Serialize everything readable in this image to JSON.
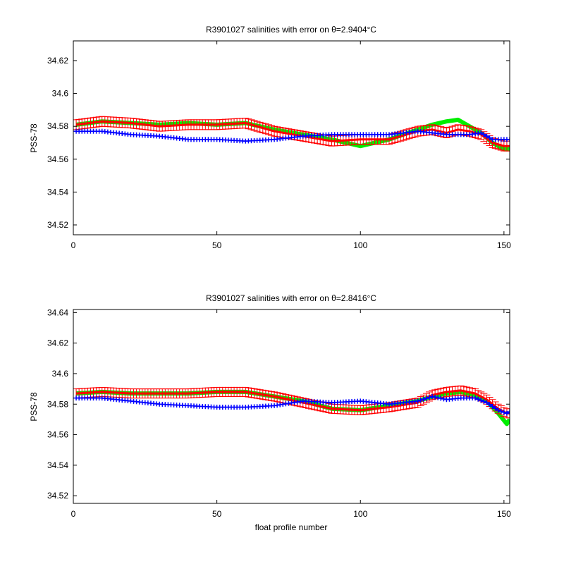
{
  "chart_data": [
    {
      "type": "line",
      "title": "R3901027 salinities with error on θ=2.9404°C",
      "xlabel": "",
      "ylabel": "PSS-78",
      "xlim": [
        0,
        152
      ],
      "ylim": [
        34.514,
        34.632
      ],
      "xticks": [
        0,
        50,
        100,
        150
      ],
      "yticks": [
        34.52,
        34.54,
        34.56,
        34.58,
        34.6,
        34.62
      ],
      "ytick_labels": [
        "34.52",
        "34.54",
        "34.56",
        "34.58",
        "34.6",
        "34.62"
      ],
      "grid": false,
      "series": [
        {
          "color": "#00ee00",
          "style": "thick-line",
          "x": [
            1,
            10,
            20,
            30,
            40,
            50,
            60,
            70,
            80,
            90,
            100,
            110,
            120,
            125,
            130,
            134,
            138,
            142,
            146,
            150,
            152
          ],
          "y": [
            34.581,
            34.583,
            34.582,
            34.581,
            34.582,
            34.581,
            34.582,
            34.578,
            34.575,
            34.572,
            34.568,
            34.572,
            34.578,
            34.581,
            34.583,
            34.584,
            34.58,
            34.576,
            34.57,
            34.566,
            34.566
          ]
        },
        {
          "color": "#ff0000",
          "style": "line-with-errorbars",
          "error": 0.003,
          "x": [
            1,
            10,
            20,
            30,
            40,
            50,
            60,
            70,
            80,
            90,
            100,
            110,
            120,
            125,
            130,
            134,
            138,
            142,
            146,
            150,
            152
          ],
          "y": [
            34.581,
            34.583,
            34.582,
            34.58,
            34.581,
            34.581,
            34.582,
            34.577,
            34.574,
            34.571,
            34.572,
            34.572,
            34.577,
            34.578,
            34.576,
            34.578,
            34.577,
            34.575,
            34.57,
            34.568,
            34.568
          ]
        },
        {
          "color": "#0000ff",
          "style": "plus-markers",
          "x": [
            1,
            10,
            20,
            30,
            40,
            50,
            60,
            70,
            80,
            90,
            100,
            110,
            120,
            125,
            130,
            134,
            138,
            142,
            146,
            150,
            152
          ],
          "y": [
            34.577,
            34.577,
            34.575,
            34.574,
            34.572,
            34.572,
            34.571,
            34.572,
            34.574,
            34.575,
            34.575,
            34.575,
            34.577,
            34.576,
            34.575,
            34.575,
            34.575,
            34.576,
            34.572,
            34.572,
            34.572
          ]
        }
      ]
    },
    {
      "type": "line",
      "title": "R3901027 salinities with error on θ=2.8416°C",
      "xlabel": "float profile number",
      "ylabel": "PSS-78",
      "xlim": [
        0,
        152
      ],
      "ylim": [
        34.515,
        34.642
      ],
      "xticks": [
        0,
        50,
        100,
        150
      ],
      "yticks": [
        34.52,
        34.54,
        34.56,
        34.58,
        34.6,
        34.62,
        34.64
      ],
      "ytick_labels": [
        "34.52",
        "34.54",
        "34.56",
        "34.58",
        "34.6",
        "34.62",
        "34.64"
      ],
      "grid": false,
      "series": [
        {
          "color": "#00ee00",
          "style": "thick-line",
          "x": [
            1,
            10,
            20,
            30,
            40,
            50,
            60,
            70,
            80,
            90,
            100,
            110,
            120,
            125,
            130,
            135,
            140,
            144,
            148,
            151,
            152
          ],
          "y": [
            34.587,
            34.588,
            34.587,
            34.587,
            34.587,
            34.588,
            34.588,
            34.585,
            34.582,
            34.577,
            34.576,
            34.579,
            34.582,
            34.585,
            34.587,
            34.588,
            34.586,
            34.582,
            34.574,
            34.567,
            34.57
          ]
        },
        {
          "color": "#ff0000",
          "style": "line-with-errorbars",
          "error": 0.003,
          "x": [
            1,
            10,
            20,
            30,
            40,
            50,
            60,
            70,
            80,
            90,
            100,
            110,
            120,
            125,
            130,
            135,
            140,
            144,
            148,
            151,
            152
          ],
          "y": [
            34.587,
            34.588,
            34.587,
            34.587,
            34.587,
            34.588,
            34.588,
            34.585,
            34.581,
            34.577,
            34.576,
            34.578,
            34.581,
            34.586,
            34.588,
            34.589,
            34.587,
            34.583,
            34.577,
            34.574,
            34.574
          ]
        },
        {
          "color": "#0000ff",
          "style": "plus-markers",
          "x": [
            1,
            10,
            20,
            30,
            40,
            50,
            60,
            70,
            80,
            90,
            100,
            110,
            120,
            125,
            130,
            135,
            140,
            144,
            148,
            151,
            152
          ],
          "y": [
            34.584,
            34.584,
            34.582,
            34.58,
            34.579,
            34.578,
            34.578,
            34.579,
            34.582,
            34.581,
            34.582,
            34.58,
            34.582,
            34.585,
            34.583,
            34.584,
            34.584,
            34.581,
            34.576,
            34.574,
            34.575
          ]
        }
      ]
    }
  ]
}
